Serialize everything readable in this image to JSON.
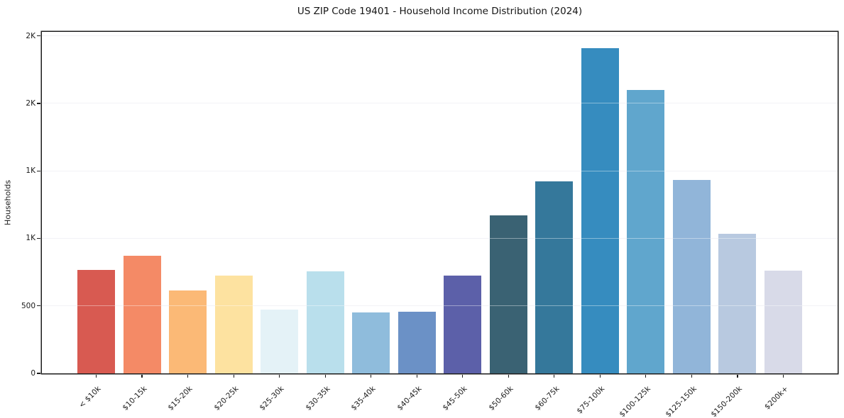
{
  "chart_data": {
    "type": "bar",
    "title": "US ZIP Code 19401 - Household Income Distribution (2024)",
    "xlabel": "",
    "ylabel": "Households",
    "categories": [
      "< $10k",
      "$10-15k",
      "$15-20k",
      "$20-25k",
      "$25-30k",
      "$30-35k",
      "$35-40k",
      "$40-45k",
      "$45-50k",
      "$50-60k",
      "$60-75k",
      "$75-100k",
      "$100-125k",
      "$125-150k",
      "$150-200k",
      "$200k+"
    ],
    "values": [
      765,
      870,
      615,
      725,
      475,
      755,
      450,
      455,
      725,
      1170,
      1425,
      2410,
      2100,
      1435,
      1035,
      760
    ],
    "bar_colors": [
      "#d85a51",
      "#f48a66",
      "#fbb976",
      "#fde2a0",
      "#e4f2f7",
      "#b9dfec",
      "#8fbcdc",
      "#6b91c6",
      "#5c60a9",
      "#3a6273",
      "#35789b",
      "#368cbf",
      "#60a6cd",
      "#91b5d9",
      "#b8c9e0",
      "#d8dae8"
    ],
    "ylim": [
      0,
      2530
    ],
    "yticks": [
      {
        "value": 0,
        "label": "0"
      },
      {
        "value": 500,
        "label": "500"
      },
      {
        "value": 1000,
        "label": "1K"
      },
      {
        "value": 1500,
        "label": "1K"
      },
      {
        "value": 2000,
        "label": "2K"
      },
      {
        "value": 2500,
        "label": "2K"
      }
    ],
    "grid": "horizontal",
    "legend": "none"
  },
  "colors": {
    "background": "#ffffff",
    "spine": "#1c1c1c",
    "gridline": "#e9e9f1",
    "text": "#1a1a1a"
  }
}
